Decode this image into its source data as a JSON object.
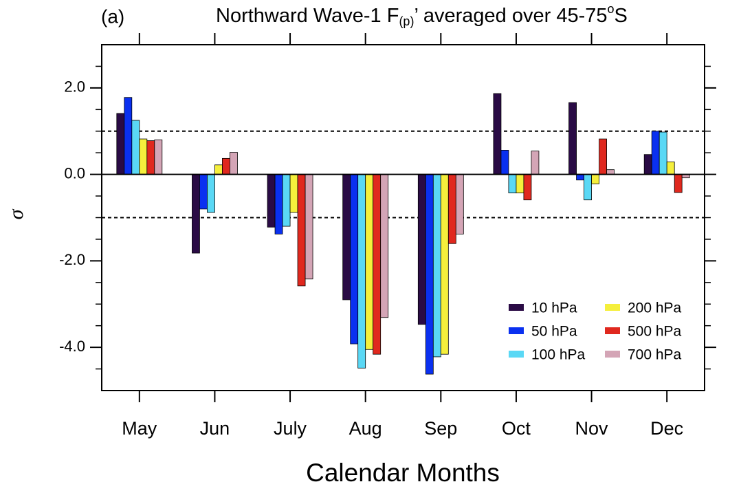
{
  "chart_data": {
    "type": "bar",
    "panel_label": "(a)",
    "title": [
      "Northward Wave-1 F",
      "(p)",
      "’ averaged over 45-75",
      "o",
      "S"
    ],
    "x_label": "Calendar Months",
    "y_label": "σ",
    "categories": [
      "May",
      "Jun",
      "July",
      "Aug",
      "Sep",
      "Oct",
      "Nov",
      "Dec"
    ],
    "series": [
      {
        "name": "10 hPa",
        "color": "#2a0b45",
        "values": [
          1.41,
          -1.82,
          -1.22,
          -2.9,
          -3.47,
          1.87,
          1.66,
          0.46
        ]
      },
      {
        "name": "50 hPa",
        "color": "#0a30f0",
        "values": [
          1.78,
          -0.8,
          -1.38,
          -3.92,
          -4.62,
          0.56,
          -0.13,
          1.0
        ]
      },
      {
        "name": "100 hPa",
        "color": "#5ad8f5",
        "values": [
          1.25,
          -0.88,
          -1.2,
          -4.48,
          -4.22,
          -0.43,
          -0.59,
          0.98
        ]
      },
      {
        "name": "200 hPa",
        "color": "#f5ef3c",
        "values": [
          0.82,
          0.22,
          -0.88,
          -4.05,
          -4.16,
          -0.43,
          -0.22,
          0.29
        ]
      },
      {
        "name": "500 hPa",
        "color": "#e0281e",
        "values": [
          0.78,
          0.37,
          -2.58,
          -4.16,
          -1.6,
          -0.59,
          0.82,
          -0.42
        ]
      },
      {
        "name": "700 hPa",
        "color": "#d4a5b6",
        "values": [
          0.8,
          0.51,
          -2.42,
          -3.31,
          -1.38,
          0.54,
          0.11,
          -0.08
        ]
      }
    ],
    "ylim": [
      -5,
      3
    ],
    "yticks": [
      {
        "value": 2,
        "label": "2.0"
      },
      {
        "value": 0,
        "label": "0.0"
      },
      {
        "value": -2,
        "label": "-2.0"
      },
      {
        "value": -4,
        "label": "-4.0"
      }
    ],
    "yminorticks": [
      2.5,
      1.5,
      1,
      0.5,
      -0.5,
      -1,
      -1.5,
      -2.5,
      -3,
      -3.5,
      -4.5
    ],
    "reference_lines": [
      1,
      -1
    ],
    "zero_line": 0,
    "legend_position": "lower right"
  }
}
